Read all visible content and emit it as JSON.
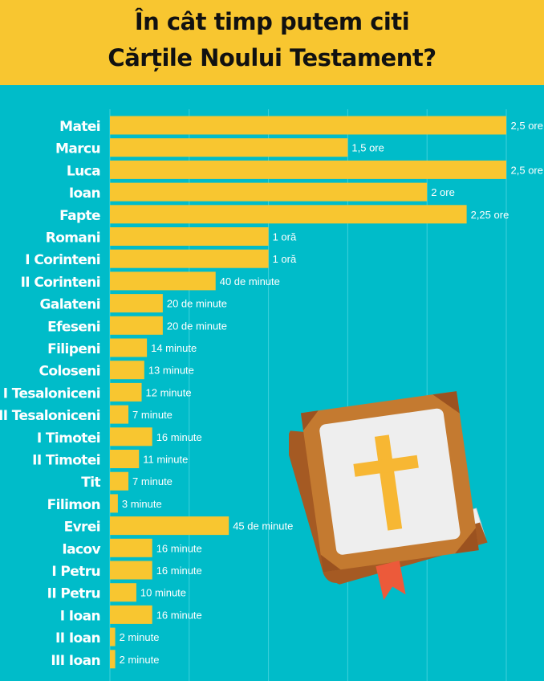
{
  "header": {
    "title_line1": "În cât timp putem citi",
    "title_line2": "Cărțile Noului Testament?"
  },
  "colors": {
    "background": "#00bcc9",
    "header": "#f8c630",
    "bar": "#f8c630",
    "label_text": "#ffffff"
  },
  "chart_data": {
    "type": "bar",
    "orientation": "horizontal",
    "value_unit": "minutes",
    "xlim": [
      0,
      150
    ],
    "grid": true,
    "title": "În cât timp putem citi Cărțile Noului Testament?",
    "categories": [
      "Matei",
      "Marcu",
      "Luca",
      "Ioan",
      "Fapte",
      "Romani",
      "I Corinteni",
      "II Corinteni",
      "Galateni",
      "Efeseni",
      "Filipeni",
      "Coloseni",
      "I Tesaloniceni",
      "II Tesaloniceni",
      "I Timotei",
      "II Timotei",
      "Tit",
      "Filimon",
      "Evrei",
      "Iacov",
      "I Petru",
      "II Petru",
      "I Ioan",
      "II Ioan",
      "III Ioan"
    ],
    "values": [
      150,
      90,
      150,
      120,
      135,
      60,
      60,
      40,
      20,
      20,
      14,
      13,
      12,
      7,
      16,
      11,
      7,
      3,
      45,
      16,
      16,
      10,
      16,
      2,
      2
    ],
    "value_labels": [
      "2,5 ore",
      "1,5 ore",
      "2,5 ore",
      "2 ore",
      "2,25 ore",
      "1 oră",
      "1 oră",
      "40 de minute",
      "20 de minute",
      "20 de minute",
      "14 minute",
      "13 minute",
      "12 minute",
      "7 minute",
      "16 minute",
      "11 minute",
      "7 minute",
      "3 minute",
      "45 de minute",
      "16 minute",
      "16 minute",
      "10 minute",
      "16 minute",
      "2 minute",
      "2 minute"
    ]
  },
  "illustration": {
    "icon": "bible-book-icon"
  }
}
